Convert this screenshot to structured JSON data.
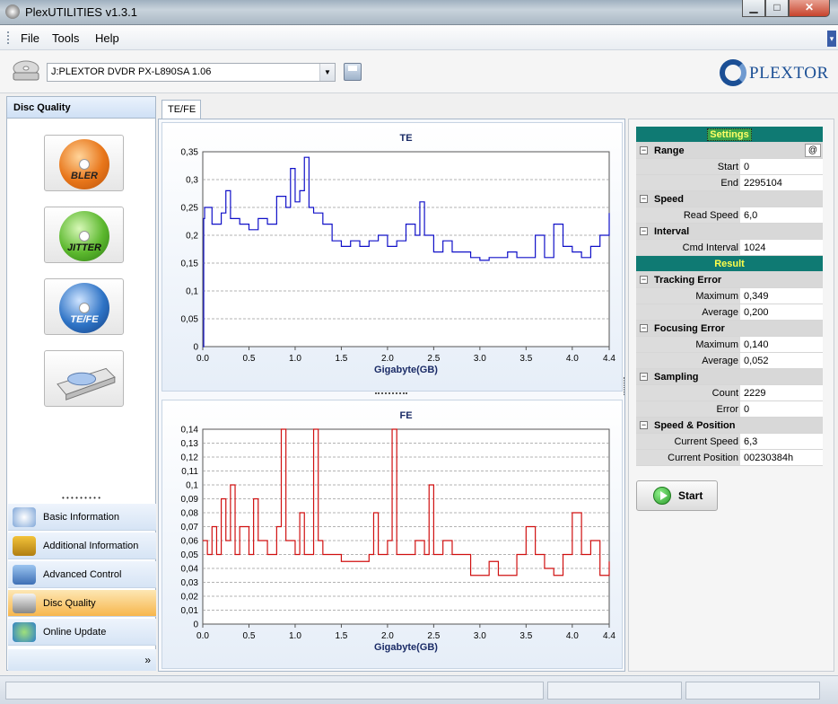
{
  "window": {
    "title": "PlexUTILITIES v1.3.1",
    "minimize": "▁",
    "maximize": "□",
    "close": "✕"
  },
  "menu": {
    "file": "File",
    "tools": "Tools",
    "help": "Help"
  },
  "toolbar": {
    "drive": "J:PLEXTOR DVDR   PX-L890SA 1.06",
    "logo": "PLEXTOR"
  },
  "left_panel": {
    "header": "Disc Quality",
    "buttons": [
      {
        "label": "BLER",
        "color": "#e8761a"
      },
      {
        "label": "JITTER",
        "color": "#5cb82e"
      },
      {
        "label": "TE/FE",
        "color": "#2f74c6"
      }
    ],
    "nav": [
      {
        "label": "Basic Information"
      },
      {
        "label": "Additional Information"
      },
      {
        "label": "Advanced Control"
      },
      {
        "label": "Disc Quality",
        "active": true
      },
      {
        "label": "Online Update"
      }
    ],
    "more": "»"
  },
  "tab": {
    "label": "TE/FE"
  },
  "chart_data": [
    {
      "type": "line",
      "title": "TE",
      "xlabel": "Gigabyte(GB)",
      "ylabel": "",
      "xlim": [
        0,
        4.4
      ],
      "ylim": [
        0,
        0.35
      ],
      "xticks": [
        "0.0",
        "0.5",
        "1.0",
        "1.5",
        "2.0",
        "2.5",
        "3.0",
        "3.5",
        "4.0",
        "4.4"
      ],
      "yticks": [
        "0",
        "0,05",
        "0,1",
        "0,15",
        "0,2",
        "0,25",
        "0,3",
        "0,35"
      ],
      "grid": true,
      "color": "#1010c8",
      "series": [
        {
          "x": [
            0,
            0.01,
            0.02,
            0.1,
            0.2,
            0.25,
            0.3,
            0.4,
            0.5,
            0.6,
            0.7,
            0.8,
            0.9,
            0.95,
            1.0,
            1.05,
            1.1,
            1.15,
            1.2,
            1.3,
            1.4,
            1.5,
            1.6,
            1.7,
            1.8,
            1.9,
            2.0,
            2.1,
            2.2,
            2.3,
            2.35,
            2.4,
            2.5,
            2.6,
            2.7,
            2.8,
            2.9,
            3.0,
            3.1,
            3.2,
            3.3,
            3.4,
            3.5,
            3.6,
            3.7,
            3.8,
            3.9,
            4.0,
            4.1,
            4.2,
            4.3,
            4.4
          ],
          "y": [
            0,
            0.23,
            0.25,
            0.22,
            0.24,
            0.28,
            0.23,
            0.22,
            0.21,
            0.23,
            0.22,
            0.27,
            0.25,
            0.32,
            0.26,
            0.28,
            0.34,
            0.25,
            0.24,
            0.22,
            0.19,
            0.18,
            0.19,
            0.18,
            0.19,
            0.2,
            0.18,
            0.19,
            0.22,
            0.2,
            0.26,
            0.2,
            0.17,
            0.19,
            0.17,
            0.17,
            0.16,
            0.155,
            0.16,
            0.16,
            0.17,
            0.16,
            0.16,
            0.2,
            0.16,
            0.22,
            0.18,
            0.17,
            0.16,
            0.18,
            0.2,
            0.24
          ]
        }
      ]
    },
    {
      "type": "line",
      "title": "FE",
      "xlabel": "Gigabyte(GB)",
      "ylabel": "",
      "xlim": [
        0,
        4.4
      ],
      "ylim": [
        0,
        0.14
      ],
      "xticks": [
        "0.0",
        "0.5",
        "1.0",
        "1.5",
        "2.0",
        "2.5",
        "3.0",
        "3.5",
        "4.0",
        "4.4"
      ],
      "yticks": [
        "0",
        "0,01",
        "0,02",
        "0,03",
        "0,04",
        "0,05",
        "0,06",
        "0,07",
        "0,08",
        "0,09",
        "0,1",
        "0,11",
        "0,12",
        "0,13",
        "0,14"
      ],
      "grid": true,
      "color": "#d01010",
      "series": [
        {
          "x": [
            0,
            0.05,
            0.1,
            0.15,
            0.2,
            0.25,
            0.3,
            0.35,
            0.4,
            0.5,
            0.55,
            0.6,
            0.7,
            0.8,
            0.85,
            0.9,
            1.0,
            1.05,
            1.1,
            1.2,
            1.25,
            1.3,
            1.4,
            1.5,
            1.6,
            1.7,
            1.8,
            1.85,
            1.9,
            2.0,
            2.05,
            2.1,
            2.2,
            2.3,
            2.4,
            2.45,
            2.5,
            2.6,
            2.7,
            2.8,
            2.9,
            3.0,
            3.1,
            3.2,
            3.3,
            3.4,
            3.5,
            3.6,
            3.7,
            3.8,
            3.9,
            4.0,
            4.1,
            4.2,
            4.3,
            4.4
          ],
          "y": [
            0.06,
            0.05,
            0.07,
            0.05,
            0.09,
            0.06,
            0.1,
            0.05,
            0.07,
            0.05,
            0.09,
            0.06,
            0.05,
            0.07,
            0.14,
            0.06,
            0.05,
            0.08,
            0.05,
            0.14,
            0.06,
            0.05,
            0.05,
            0.045,
            0.045,
            0.045,
            0.05,
            0.08,
            0.05,
            0.06,
            0.14,
            0.05,
            0.05,
            0.06,
            0.05,
            0.1,
            0.05,
            0.06,
            0.05,
            0.05,
            0.035,
            0.035,
            0.045,
            0.035,
            0.035,
            0.05,
            0.07,
            0.05,
            0.04,
            0.035,
            0.05,
            0.08,
            0.05,
            0.06,
            0.035,
            0.045
          ]
        }
      ]
    }
  ],
  "settings": {
    "header": "Settings",
    "range": {
      "label": "Range",
      "at": "@",
      "start_k": "Start",
      "start_v": "0",
      "end_k": "End",
      "end_v": "2295104"
    },
    "speed": {
      "label": "Speed",
      "read_k": "Read Speed",
      "read_v": "6,0"
    },
    "interval": {
      "label": "Interval",
      "cmd_k": "Cmd Interval",
      "cmd_v": "1024"
    }
  },
  "result": {
    "header": "Result",
    "tracking": {
      "label": "Tracking Error",
      "max_k": "Maximum",
      "max_v": "0,349",
      "avg_k": "Average",
      "avg_v": "0,200"
    },
    "focusing": {
      "label": "Focusing Error",
      "max_k": "Maximum",
      "max_v": "0,140",
      "avg_k": "Average",
      "avg_v": "0,052"
    },
    "sampling": {
      "label": "Sampling",
      "count_k": "Count",
      "count_v": "2229",
      "error_k": "Error",
      "error_v": "0"
    },
    "speedpos": {
      "label": "Speed & Position",
      "speed_k": "Current Speed",
      "speed_v": "6,3",
      "pos_k": "Current Position",
      "pos_v": "00230384h"
    }
  },
  "start_button": "Start"
}
